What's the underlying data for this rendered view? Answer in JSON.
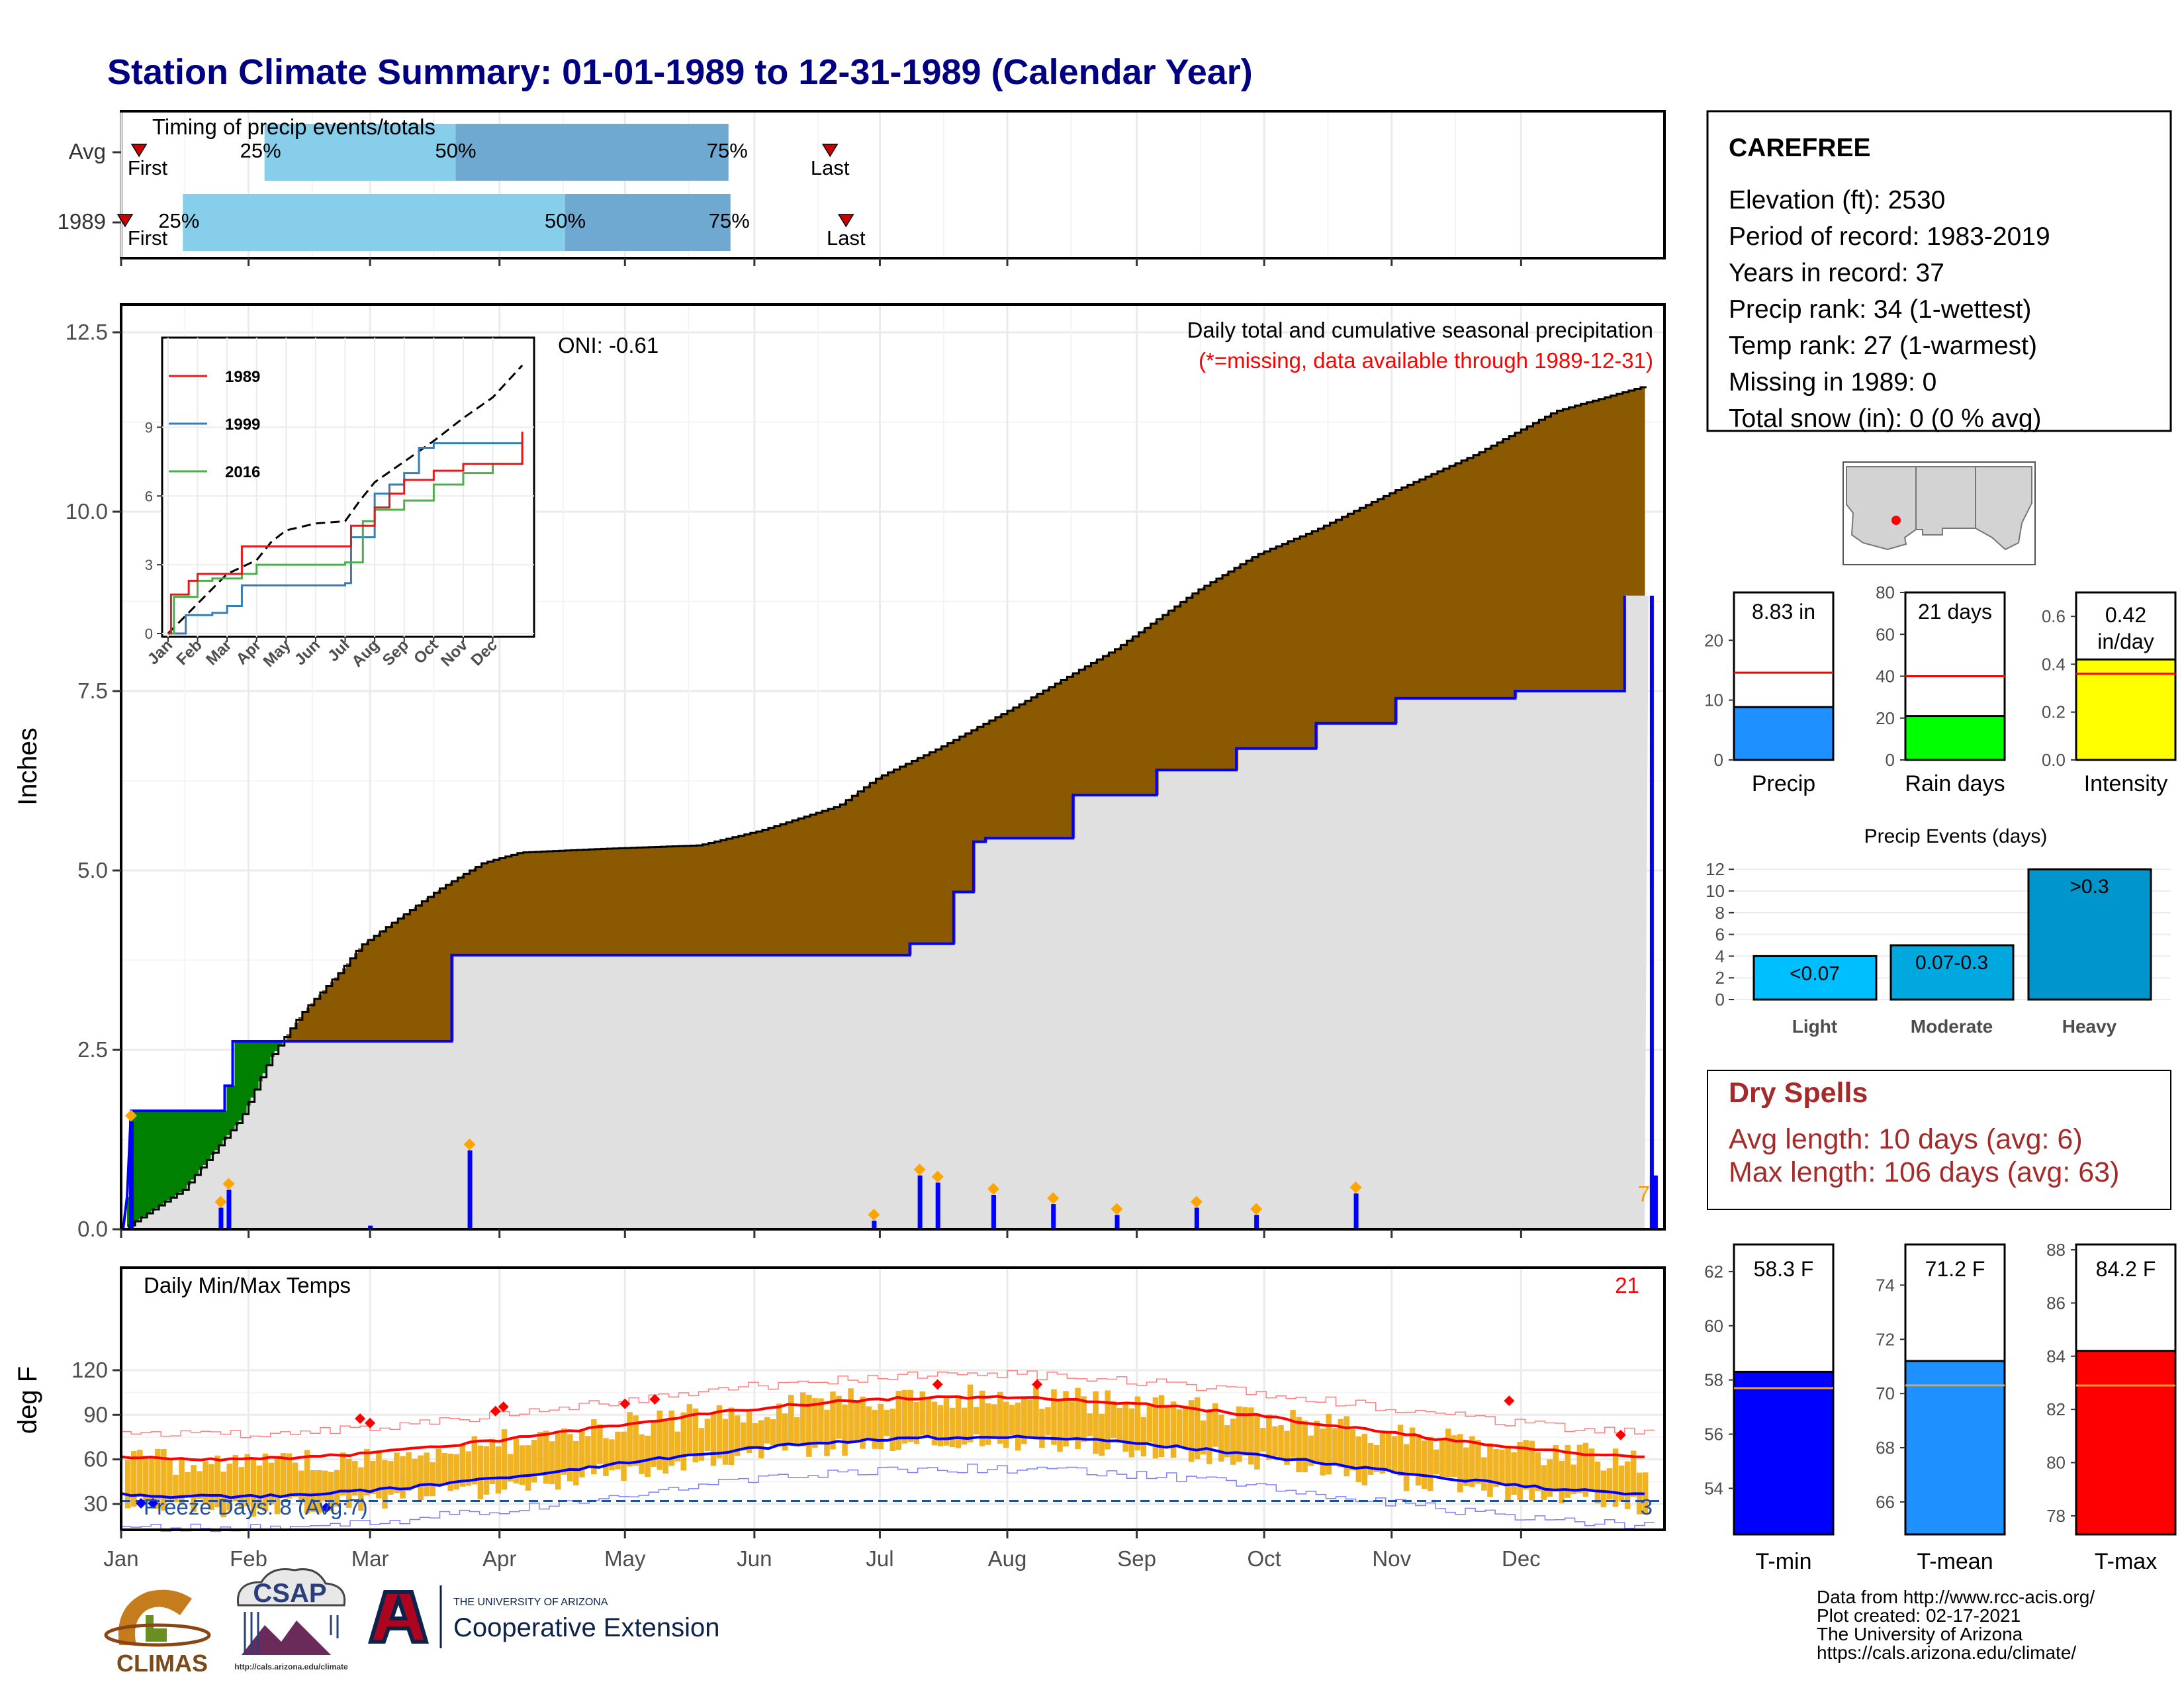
{
  "page": {
    "title": "Station Climate Summary: 01-01-1989 to 12-31-1989 (Calendar Year)"
  },
  "months": [
    "Jan",
    "Feb",
    "Mar",
    "Apr",
    "May",
    "Jun",
    "Jul",
    "Aug",
    "Sep",
    "Oct",
    "Nov",
    "Dec"
  ],
  "timing": {
    "subtitle": "Timing of precip events/totals",
    "rows": [
      {
        "label": "Avg",
        "first_day": 9,
        "p25": 72,
        "p50": 168,
        "p75": 305,
        "last_day": 356,
        "first_label": "First",
        "last_label": "Last",
        "p25_label": "25%",
        "p50_label": "50%",
        "p75_label": "75%"
      },
      {
        "label": "1989",
        "first_day": 2,
        "p25": 31,
        "p50": 223,
        "p75": 306,
        "last_day": 364,
        "first_label": "First",
        "last_label": "Last",
        "p25_label": "25%",
        "p50_label": "50%",
        "p75_label": "75%"
      }
    ],
    "colors": {
      "light": "#87ceeb",
      "dark": "#6fa8d0",
      "marker": "#cc0000"
    }
  },
  "precip_chart": {
    "title": "Daily total and cumulative seasonal precipitation",
    "subtitle": "(*=missing, data available through 1989-12-31)",
    "oni": "ONI: -0.61",
    "ylabel": "Inches",
    "yticks": [
      "0.0",
      "2.5",
      "5.0",
      "7.5",
      "10.0",
      "12.5"
    ],
    "missing_count": "7"
  },
  "inset": {
    "yticks": [
      "0",
      "3",
      "6",
      "9"
    ],
    "legend": [
      {
        "name": "1989",
        "color": "#e41a1c"
      },
      {
        "name": "1999",
        "color": "#377eb8"
      },
      {
        "name": "2016",
        "color": "#4daf4a"
      }
    ]
  },
  "temp_chart": {
    "title": "Daily Min/Max Temps",
    "ylabel": "deg F",
    "yticks": [
      "30",
      "60",
      "90",
      "120"
    ],
    "freeze_text": "Freeze Days: 8 (Avg:7)",
    "hot_count": "21",
    "cold_count": "3"
  },
  "station": {
    "name": "CAREFREE",
    "lines": [
      "Elevation (ft): 2530",
      "Period of record: 1983-2019",
      "Years in record: 37",
      "Precip rank: 34 (1-wettest)",
      "Temp rank: 27 (1-warmest)",
      "Missing in 1989: 0",
      "Total snow (in): 0 (0 % avg)"
    ]
  },
  "precip_bars": [
    {
      "label": "Precip",
      "value_text": "8.83 in",
      "value": 8.83,
      "avg": 14.6,
      "ymax": 28,
      "ticks": [
        "0",
        "10",
        "20"
      ],
      "tickvals": [
        0,
        10,
        20
      ],
      "color": "#1e90ff"
    },
    {
      "label": "Rain days",
      "value_text": "21 days",
      "value": 21,
      "avg": 40,
      "ymax": 80,
      "ticks": [
        "0",
        "20",
        "40",
        "60",
        "80"
      ],
      "tickvals": [
        0,
        20,
        40,
        60,
        80
      ],
      "color": "#00ff00"
    },
    {
      "label": "Intensity",
      "value_text": "0.42 in/day",
      "value": 0.42,
      "avg": 0.36,
      "ymax": 0.7,
      "ticks": [
        "0.0",
        "0.2",
        "0.4",
        "0.6"
      ],
      "tickvals": [
        0,
        0.2,
        0.4,
        0.6
      ],
      "color": "#ffff00"
    }
  ],
  "precip_events": {
    "title": "Precip Events (days)",
    "categories": [
      "Light",
      "Moderate",
      "Heavy"
    ],
    "labels": [
      "<0.07",
      "0.07-0.3",
      ">0.3"
    ],
    "values": [
      4,
      5,
      12
    ],
    "ticks": [
      "0",
      "2",
      "4",
      "6",
      "8",
      "10",
      "12"
    ],
    "colors": [
      "#00bfff",
      "#00a8e0",
      "#0096cc"
    ]
  },
  "dry_spells": {
    "title": "Dry Spells",
    "avg_line": "Avg length: 10 days (avg: 6)",
    "max_line": "Max length: 106 days (avg: 63)"
  },
  "temp_bars": [
    {
      "label": "T-min",
      "value_text": "58.3 F",
      "value": 58.3,
      "avg": 57.7,
      "ymin": 52.3,
      "ymax": 63.0,
      "ticks": [
        "54",
        "56",
        "58",
        "60",
        "62"
      ],
      "tickvals": [
        54,
        56,
        58,
        60,
        62
      ],
      "color": "#0000ff"
    },
    {
      "label": "T-mean",
      "value_text": "71.2 F",
      "value": 71.2,
      "avg": 70.3,
      "ymin": 64.8,
      "ymax": 75.5,
      "ticks": [
        "66",
        "68",
        "70",
        "72",
        "74"
      ],
      "tickvals": [
        66,
        68,
        70,
        72,
        74
      ],
      "color": "#1e90ff"
    },
    {
      "label": "T-max",
      "value_text": "84.2 F",
      "value": 84.2,
      "avg": 82.9,
      "ymin": 77.3,
      "ymax": 88.2,
      "ticks": [
        "78",
        "80",
        "82",
        "84",
        "86",
        "88"
      ],
      "tickvals": [
        78,
        80,
        82,
        84,
        86,
        88
      ],
      "color": "#ff0000"
    }
  ],
  "footer": {
    "lines": [
      "Data from http://www.rcc-acis.org/",
      "Plot created: 02-17-2021",
      "The University of Arizona",
      "https://cals.arizona.edu/climate/"
    ],
    "logo_climas": "CLIMAS",
    "logo_csap": "CSAP",
    "logo_csap_url": "http://cals.arizona.edu/climate",
    "ua_line1": "THE UNIVERSITY OF ARIZONA",
    "ua_line2": "Cooperative Extension"
  },
  "chart_data": {
    "type": "line",
    "title": "Daily total and cumulative seasonal precipitation",
    "ylabel": "Inches",
    "ylim": [
      0,
      13
    ],
    "x_unit": "day of year 1989",
    "series": [
      {
        "name": "1989",
        "points": [
          [
            1,
            0.0
          ],
          [
            3,
            0.45
          ],
          [
            5,
            1.65
          ],
          [
            52,
            1.65
          ],
          [
            52,
            2.0
          ],
          [
            56,
            2.0
          ],
          [
            56,
            2.62
          ],
          [
            166,
            2.62
          ],
          [
            166,
            3.82
          ],
          [
            396,
            3.82
          ],
          [
            396,
            3.98
          ],
          [
            418,
            3.98
          ],
          [
            418,
            4.7
          ],
          [
            428,
            4.7
          ],
          [
            428,
            5.4
          ],
          [
            434,
            5.4
          ],
          [
            434,
            5.45
          ],
          [
            478,
            5.45
          ],
          [
            478,
            6.05
          ],
          [
            520,
            6.05
          ],
          [
            520,
            6.4
          ],
          [
            560,
            6.4
          ],
          [
            560,
            6.7
          ],
          [
            600,
            6.7
          ],
          [
            600,
            7.05
          ],
          [
            640,
            7.05
          ],
          [
            640,
            7.4
          ],
          [
            700,
            7.4
          ],
          [
            700,
            7.5
          ],
          [
            755,
            7.5
          ],
          [
            755,
            8.83
          ]
        ]
      }
    ],
    "cumulative_average": [
      [
        1,
        0
      ],
      [
        20,
        0.35
      ],
      [
        31,
        0.55
      ],
      [
        60,
        1.55
      ],
      [
        75,
        2.4
      ],
      [
        90,
        3.0
      ],
      [
        110,
        3.6
      ],
      [
        120,
        3.95
      ],
      [
        140,
        4.35
      ],
      [
        160,
        4.75
      ],
      [
        181,
        5.1
      ],
      [
        200,
        5.25
      ],
      [
        240,
        5.3
      ],
      [
        290,
        5.35
      ],
      [
        320,
        5.55
      ],
      [
        360,
        5.9
      ],
      [
        380,
        6.3
      ],
      [
        410,
        6.7
      ],
      [
        450,
        7.3
      ],
      [
        500,
        8.1
      ],
      [
        540,
        8.9
      ],
      [
        570,
        9.4
      ],
      [
        600,
        9.75
      ],
      [
        640,
        10.3
      ],
      [
        680,
        10.8
      ],
      [
        720,
        11.4
      ],
      [
        765,
        11.75
      ]
    ],
    "daily_precip_events": [
      {
        "day": 5,
        "inches": 1.5
      },
      {
        "day": 50,
        "inches": 0.3
      },
      {
        "day": 54,
        "inches": 0.55
      },
      {
        "day": 125,
        "inches": 0.05
      },
      {
        "day": 175,
        "inches": 1.1
      },
      {
        "day": 378,
        "inches": 0.12
      },
      {
        "day": 401,
        "inches": 0.75
      },
      {
        "day": 410,
        "inches": 0.65
      },
      {
        "day": 438,
        "inches": 0.48
      },
      {
        "day": 468,
        "inches": 0.35
      },
      {
        "day": 500,
        "inches": 0.2
      },
      {
        "day": 540,
        "inches": 0.3
      },
      {
        "day": 570,
        "inches": 0.2
      },
      {
        "day": 620,
        "inches": 0.5
      }
    ]
  }
}
